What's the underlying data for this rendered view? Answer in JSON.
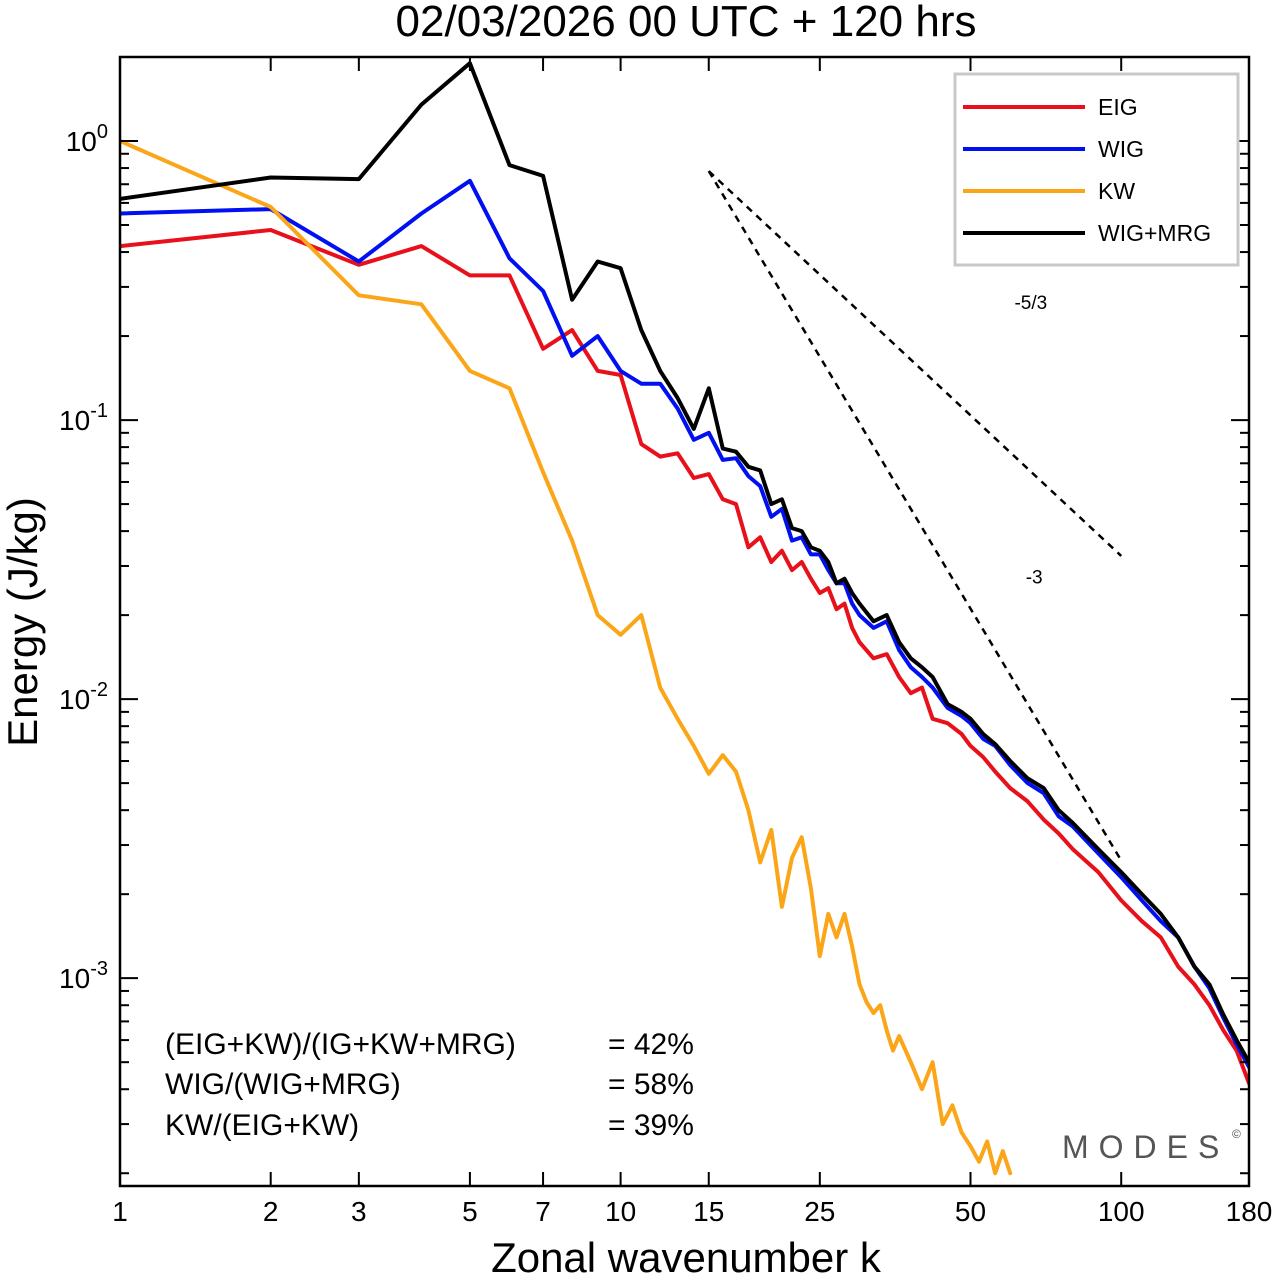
{
  "chart_data": {
    "type": "line",
    "title": "02/03/2026  00 UTC  + 120 hrs",
    "xlabel": "Zonal wavenumber k",
    "ylabel": "Energy (J/kg)",
    "xscale": "log",
    "yscale": "log",
    "xlim": [
      1,
      180
    ],
    "ylim": [
      0.00018,
      2.0
    ],
    "x_ticks": [
      1,
      2,
      3,
      5,
      7,
      10,
      15,
      25,
      50,
      100,
      180
    ],
    "y_ticks": [
      {
        "value": 1,
        "base": "10",
        "exp": "0"
      },
      {
        "value": 0.1,
        "base": "10",
        "exp": "-1"
      },
      {
        "value": 0.01,
        "base": "10",
        "exp": "-2"
      },
      {
        "value": 0.001,
        "base": "10",
        "exp": "-3"
      }
    ],
    "legend_position": "top-right",
    "series": [
      {
        "name": "EIG",
        "color": "#e8101a",
        "x": [
          1,
          2,
          3,
          4,
          5,
          6,
          7,
          8,
          9,
          10,
          11,
          12,
          13,
          14,
          15,
          16,
          17,
          18,
          19,
          20,
          21,
          22,
          23,
          24,
          25,
          26,
          27,
          28,
          29,
          30,
          32,
          34,
          36,
          38,
          40,
          42,
          45,
          48,
          50,
          53,
          56,
          60,
          65,
          70,
          75,
          80,
          90,
          100,
          110,
          120,
          130,
          140,
          150,
          160,
          170,
          180
        ],
        "values": [
          0.42,
          0.48,
          0.36,
          0.42,
          0.33,
          0.33,
          0.18,
          0.21,
          0.15,
          0.145,
          0.082,
          0.074,
          0.076,
          0.062,
          0.064,
          0.052,
          0.05,
          0.035,
          0.038,
          0.031,
          0.034,
          0.029,
          0.031,
          0.027,
          0.024,
          0.025,
          0.021,
          0.022,
          0.018,
          0.016,
          0.014,
          0.0145,
          0.012,
          0.0105,
          0.011,
          0.0085,
          0.0082,
          0.0075,
          0.0068,
          0.0062,
          0.0055,
          0.0048,
          0.0043,
          0.0037,
          0.0033,
          0.0029,
          0.0024,
          0.0019,
          0.0016,
          0.0014,
          0.0011,
          0.00095,
          0.0008,
          0.00065,
          0.00055,
          0.00042
        ]
      },
      {
        "name": "WIG",
        "color": "#0010f0",
        "x": [
          1,
          2,
          3,
          4,
          5,
          6,
          7,
          8,
          9,
          10,
          11,
          12,
          13,
          14,
          15,
          16,
          17,
          18,
          19,
          20,
          21,
          22,
          23,
          24,
          25,
          26,
          27,
          28,
          29,
          30,
          32,
          34,
          36,
          38,
          40,
          42,
          45,
          48,
          50,
          53,
          56,
          60,
          65,
          70,
          75,
          80,
          90,
          100,
          110,
          120,
          130,
          140,
          150,
          160,
          170,
          180
        ],
        "values": [
          0.55,
          0.57,
          0.37,
          0.55,
          0.72,
          0.38,
          0.29,
          0.17,
          0.2,
          0.15,
          0.135,
          0.135,
          0.11,
          0.085,
          0.09,
          0.072,
          0.073,
          0.063,
          0.058,
          0.045,
          0.048,
          0.037,
          0.038,
          0.033,
          0.033,
          0.029,
          0.026,
          0.026,
          0.022,
          0.02,
          0.018,
          0.019,
          0.015,
          0.013,
          0.012,
          0.011,
          0.0093,
          0.0087,
          0.0082,
          0.0072,
          0.0068,
          0.0058,
          0.005,
          0.0046,
          0.0038,
          0.0035,
          0.0028,
          0.0023,
          0.0019,
          0.0016,
          0.0014,
          0.0011,
          0.00092,
          0.00072,
          0.00058,
          0.00048
        ]
      },
      {
        "name": "KW",
        "color": "#fba518",
        "x": [
          1,
          2,
          3,
          4,
          5,
          6,
          7,
          8,
          9,
          10,
          11,
          12,
          13,
          14,
          15,
          16,
          17,
          18,
          19,
          20,
          21,
          22,
          23,
          24,
          25,
          26,
          27,
          28,
          29,
          30,
          31,
          32,
          33,
          34,
          35,
          36,
          38,
          40,
          42,
          44,
          46,
          48,
          50,
          52,
          54,
          56,
          58,
          60
        ],
        "values": [
          1.0,
          0.58,
          0.28,
          0.26,
          0.15,
          0.13,
          0.065,
          0.037,
          0.02,
          0.017,
          0.02,
          0.011,
          0.0085,
          0.0068,
          0.0054,
          0.0063,
          0.0055,
          0.004,
          0.0026,
          0.0034,
          0.0018,
          0.0027,
          0.0032,
          0.0021,
          0.0012,
          0.0017,
          0.0014,
          0.0017,
          0.0013,
          0.00095,
          0.00082,
          0.00075,
          0.0008,
          0.00065,
          0.00055,
          0.00062,
          0.0005,
          0.0004,
          0.0005,
          0.0003,
          0.00035,
          0.00028,
          0.00025,
          0.00022,
          0.00026,
          0.0002,
          0.00024,
          0.0002
        ]
      },
      {
        "name": "WIG+MRG",
        "color": "#000000",
        "x": [
          1,
          2,
          3,
          4,
          5,
          6,
          7,
          8,
          9,
          10,
          11,
          12,
          13,
          14,
          15,
          16,
          17,
          18,
          19,
          20,
          21,
          22,
          23,
          24,
          25,
          26,
          27,
          28,
          29,
          30,
          32,
          34,
          36,
          38,
          40,
          42,
          45,
          48,
          50,
          53,
          56,
          60,
          65,
          70,
          75,
          80,
          90,
          100,
          110,
          120,
          130,
          140,
          150,
          160,
          170,
          180
        ],
        "values": [
          0.62,
          0.74,
          0.73,
          1.35,
          1.9,
          0.82,
          0.75,
          0.27,
          0.37,
          0.35,
          0.21,
          0.15,
          0.12,
          0.093,
          0.13,
          0.079,
          0.077,
          0.068,
          0.066,
          0.05,
          0.052,
          0.041,
          0.04,
          0.035,
          0.034,
          0.031,
          0.026,
          0.027,
          0.024,
          0.022,
          0.019,
          0.02,
          0.016,
          0.014,
          0.013,
          0.012,
          0.0096,
          0.009,
          0.0085,
          0.0075,
          0.0069,
          0.006,
          0.0052,
          0.0048,
          0.004,
          0.0036,
          0.0029,
          0.0024,
          0.002,
          0.0017,
          0.0014,
          0.0011,
          0.00095,
          0.00074,
          0.0006,
          0.0005
        ]
      }
    ],
    "reference_lines": [
      {
        "label": "-5/3",
        "x": [
          15,
          100
        ],
        "y": [
          0.78,
          0.0326
        ]
      },
      {
        "label": "-3",
        "x": [
          15,
          100
        ],
        "y": [
          0.78,
          0.00264
        ]
      }
    ],
    "stats": [
      {
        "label": "(EIG+KW)/(IG+KW+MRG)",
        "value": "= 42%"
      },
      {
        "label": "WIG/(WIG+MRG)",
        "value": "= 58%"
      },
      {
        "label": "KW/(EIG+KW)",
        "value": "= 39%"
      }
    ],
    "brand": "MODES",
    "brand_mark": "©"
  }
}
